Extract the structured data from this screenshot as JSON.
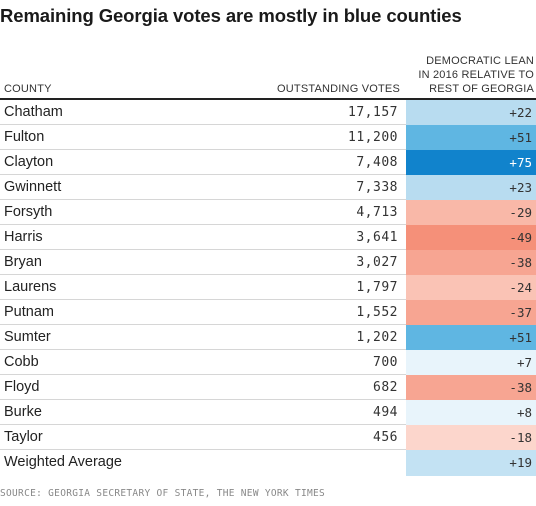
{
  "title": "Remaining Georgia votes are mostly in blue counties",
  "headers": {
    "county": "COUNTY",
    "votes": "OUTSTANDING VOTES",
    "lean_line1": "DEMOCRATIC LEAN",
    "lean_line2": "IN 2016 RELATIVE TO",
    "lean_line3": "REST OF GEORGIA"
  },
  "source": "SOURCE: GEORGIA SECRETARY OF STATE, THE NEW YORK TIMES",
  "chart_data": {
    "type": "table",
    "columns": [
      "COUNTY",
      "OUTSTANDING VOTES",
      "DEMOCRATIC LEAN IN 2016 RELATIVE TO REST OF GEORGIA"
    ],
    "rows": [
      {
        "county": "Chatham",
        "votes": "17,157",
        "lean": "+22",
        "lean_value": 22,
        "color": "#b8dcf0"
      },
      {
        "county": "Fulton",
        "votes": "11,200",
        "lean": "+51",
        "lean_value": 51,
        "color": "#5fb6e2"
      },
      {
        "county": "Clayton",
        "votes": "7,408",
        "lean": "+75",
        "lean_value": 75,
        "color": "#1183cc"
      },
      {
        "county": "Gwinnett",
        "votes": "7,338",
        "lean": "+23",
        "lean_value": 23,
        "color": "#b8dcf0"
      },
      {
        "county": "Forsyth",
        "votes": "4,713",
        "lean": "-29",
        "lean_value": -29,
        "color": "#f9b8a8"
      },
      {
        "county": "Harris",
        "votes": "3,641",
        "lean": "-49",
        "lean_value": -49,
        "color": "#f59079"
      },
      {
        "county": "Bryan",
        "votes": "3,027",
        "lean": "-38",
        "lean_value": -38,
        "color": "#f7a592"
      },
      {
        "county": "Laurens",
        "votes": "1,797",
        "lean": "-24",
        "lean_value": -24,
        "color": "#fac3b5"
      },
      {
        "county": "Putnam",
        "votes": "1,552",
        "lean": "-37",
        "lean_value": -37,
        "color": "#f7a592"
      },
      {
        "county": "Sumter",
        "votes": "1,202",
        "lean": "+51",
        "lean_value": 51,
        "color": "#5fb6e2"
      },
      {
        "county": "Cobb",
        "votes": "700",
        "lean": "+7",
        "lean_value": 7,
        "color": "#e8f4fb"
      },
      {
        "county": "Floyd",
        "votes": "682",
        "lean": "-38",
        "lean_value": -38,
        "color": "#f7a592"
      },
      {
        "county": "Burke",
        "votes": "494",
        "lean": "+8",
        "lean_value": 8,
        "color": "#e8f4fb"
      },
      {
        "county": "Taylor",
        "votes": "456",
        "lean": "-18",
        "lean_value": -18,
        "color": "#fcd6cc"
      },
      {
        "county": "Weighted Average",
        "votes": "",
        "lean": "+19",
        "lean_value": 19,
        "color": "#c3e2f3"
      }
    ]
  }
}
